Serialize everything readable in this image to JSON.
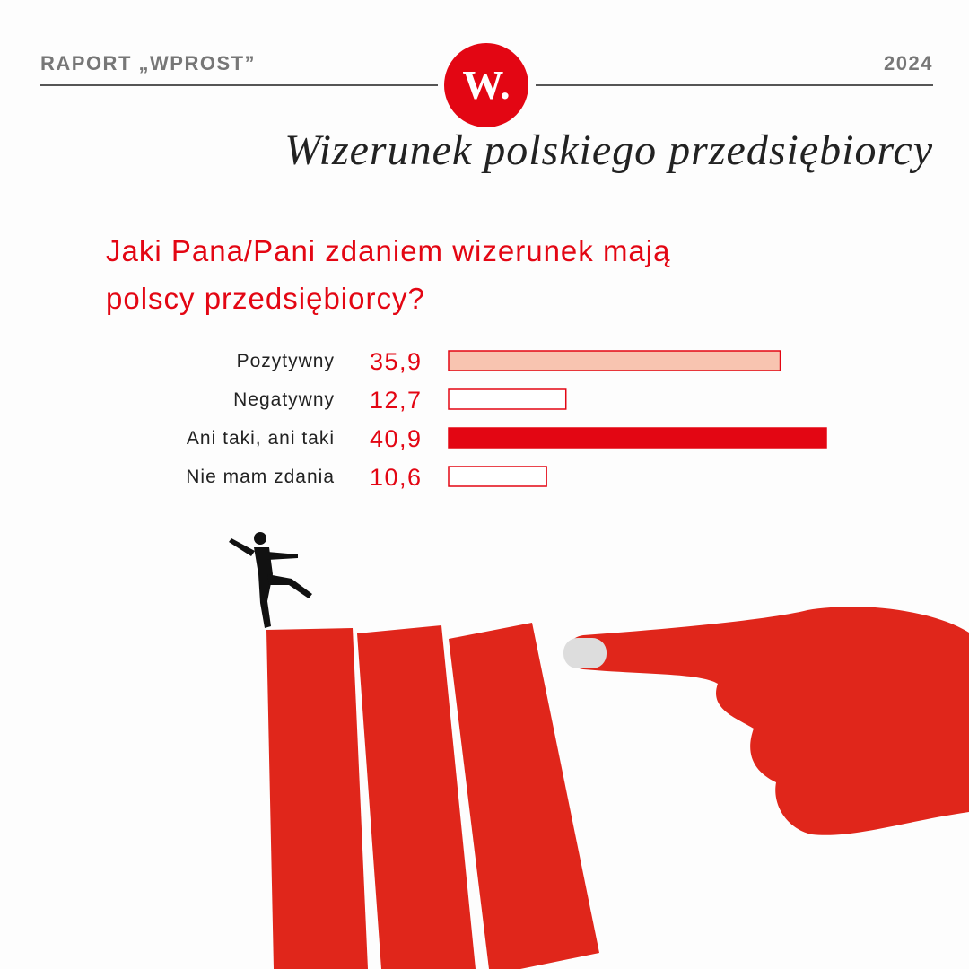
{
  "header": {
    "left": "RAPORT „WPROST”",
    "right": "2024",
    "logo": "W.",
    "subtitle": "Wizerunek polskiego przedsiębiorcy"
  },
  "chart_data": {
    "type": "barh",
    "title": "Jaki Pana/Pani zdaniem wizerunek mają polscy przedsiębiorcy?",
    "categories": [
      "Pozytywny",
      "Negatywny",
      "Ani taki, ani taki",
      "Nie mam zdania"
    ],
    "values": [
      35.9,
      12.7,
      40.9,
      10.6
    ],
    "value_labels": [
      "35,9",
      "12,7",
      "40,9",
      "10,6"
    ],
    "colors": [
      "#f8c4b0",
      "#ffffff",
      "#e30613",
      "#ffffff"
    ],
    "edgecolor": "#e30613"
  }
}
